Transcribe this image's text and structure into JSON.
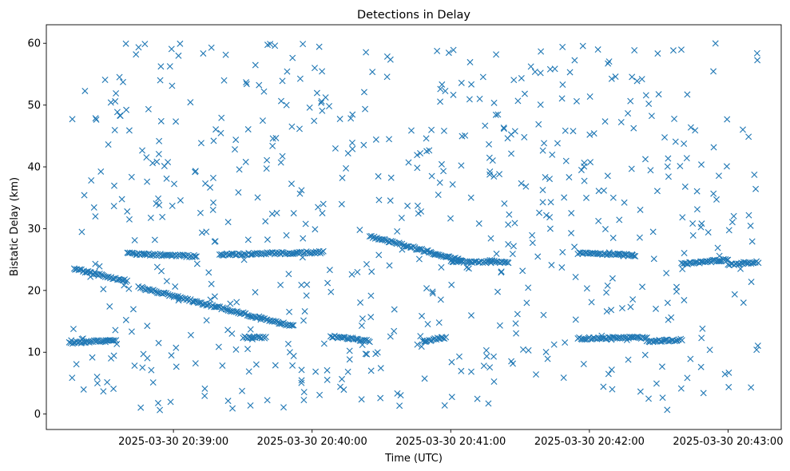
{
  "chart_data": {
    "type": "scatter",
    "title": "Detections in Delay",
    "xlabel": "Time (UTC)",
    "ylabel": "Bistatic Delay (km)",
    "marker": "x",
    "color": "#1f77b4",
    "grid": false,
    "legend": "none",
    "x_time_range": [
      "2025-03-30 20:38:15",
      "2025-03-30 20:43:13"
    ],
    "xlim": [
      "2025-03-30 20:38:05",
      "2025-03-30 20:43:23"
    ],
    "ylim": [
      -2.5,
      63
    ],
    "xticks": [
      "2025-03-30 20:39:00",
      "2025-03-30 20:40:00",
      "2025-03-30 20:41:00",
      "2025-03-30 20:42:00",
      "2025-03-30 20:43:00"
    ],
    "yticks": [
      0,
      10,
      20,
      30,
      40,
      50,
      60
    ],
    "tracks": [
      {
        "description": "steady track",
        "time_start": "2025-03-30 20:38:15",
        "time_end": "2025-03-30 20:38:35",
        "delay_start": 11.5,
        "delay_end": 12.0
      },
      {
        "description": "descending track",
        "time_start": "2025-03-30 20:38:17",
        "time_end": "2025-03-30 20:38:40",
        "delay_start": 23.5,
        "delay_end": 21.5
      },
      {
        "description": "steady track",
        "time_start": "2025-03-30 20:38:40",
        "time_end": "2025-03-30 20:39:10",
        "delay_start": 26.0,
        "delay_end": 25.5
      },
      {
        "description": "descending track",
        "time_start": "2025-03-30 20:38:45",
        "time_end": "2025-03-30 20:39:52",
        "delay_start": 20.5,
        "delay_end": 14.2
      },
      {
        "description": "steady track",
        "time_start": "2025-03-30 20:39:20",
        "time_end": "2025-03-30 20:40:05",
        "delay_start": 25.8,
        "delay_end": 26.2
      },
      {
        "description": "steady track",
        "time_start": "2025-03-30 20:39:30",
        "time_end": "2025-03-30 20:39:40",
        "delay_start": 12.4,
        "delay_end": 12.4
      },
      {
        "description": "descending track",
        "time_start": "2025-03-30 20:40:08",
        "time_end": "2025-03-30 20:40:25",
        "delay_start": 12.6,
        "delay_end": 11.8
      },
      {
        "description": "descending track",
        "time_start": "2025-03-30 20:40:25",
        "time_end": "2025-03-30 20:41:05",
        "delay_start": 28.8,
        "delay_end": 24.8
      },
      {
        "description": "steady track",
        "time_start": "2025-03-30 20:40:48",
        "time_end": "2025-03-30 20:40:58",
        "delay_start": 11.8,
        "delay_end": 12.4
      },
      {
        "description": "steady track",
        "time_start": "2025-03-30 20:41:00",
        "time_end": "2025-03-30 20:41:25",
        "delay_start": 24.7,
        "delay_end": 24.6
      },
      {
        "description": "steady track",
        "time_start": "2025-03-30 20:41:55",
        "time_end": "2025-03-30 20:42:20",
        "delay_start": 26.0,
        "delay_end": 25.7
      },
      {
        "description": "steady track",
        "time_start": "2025-03-30 20:41:55",
        "time_end": "2025-03-30 20:42:25",
        "delay_start": 12.2,
        "delay_end": 12.4
      },
      {
        "description": "steady track",
        "time_start": "2025-03-30 20:42:25",
        "time_end": "2025-03-30 20:42:40",
        "delay_start": 11.8,
        "delay_end": 12.0
      },
      {
        "description": "steady track",
        "time_start": "2025-03-30 20:42:40",
        "time_end": "2025-03-30 20:43:00",
        "delay_start": 24.3,
        "delay_end": 25.0
      },
      {
        "description": "steady track",
        "time_start": "2025-03-30 20:43:00",
        "time_end": "2025-03-30 20:43:13",
        "delay_start": 24.2,
        "delay_end": 24.6
      }
    ],
    "background_clutter": {
      "delay_range": [
        0.5,
        60
      ],
      "approx_points": 640
    }
  }
}
